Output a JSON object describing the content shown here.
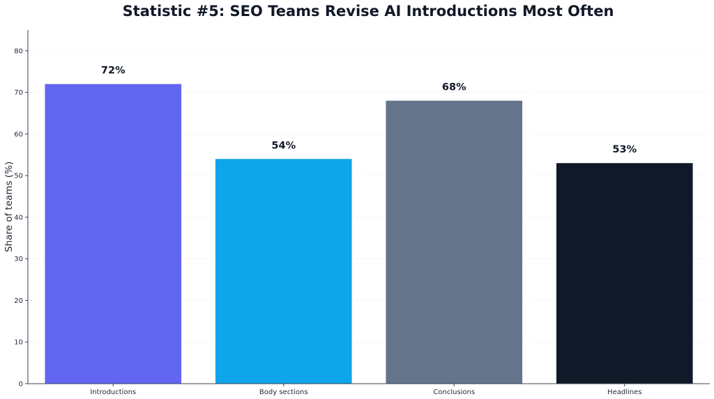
{
  "chart_data": {
    "type": "bar",
    "title": "Statistic #5: SEO Teams Revise AI Introductions Most Often",
    "xlabel": "",
    "ylabel": "Share of teams (%)",
    "ylim": [
      0,
      85
    ],
    "yticks": [
      0,
      10,
      20,
      30,
      40,
      50,
      60,
      70,
      80
    ],
    "categories": [
      "Introductions",
      "Body sections",
      "Conclusions",
      "Headlines"
    ],
    "values": [
      72,
      54,
      68,
      53
    ],
    "data_labels": [
      "72%",
      "54%",
      "68%",
      "53%"
    ],
    "colors": [
      "#6366f1",
      "#0ea5e9",
      "#64748b",
      "#111827"
    ],
    "grid": true,
    "legend": "none"
  }
}
